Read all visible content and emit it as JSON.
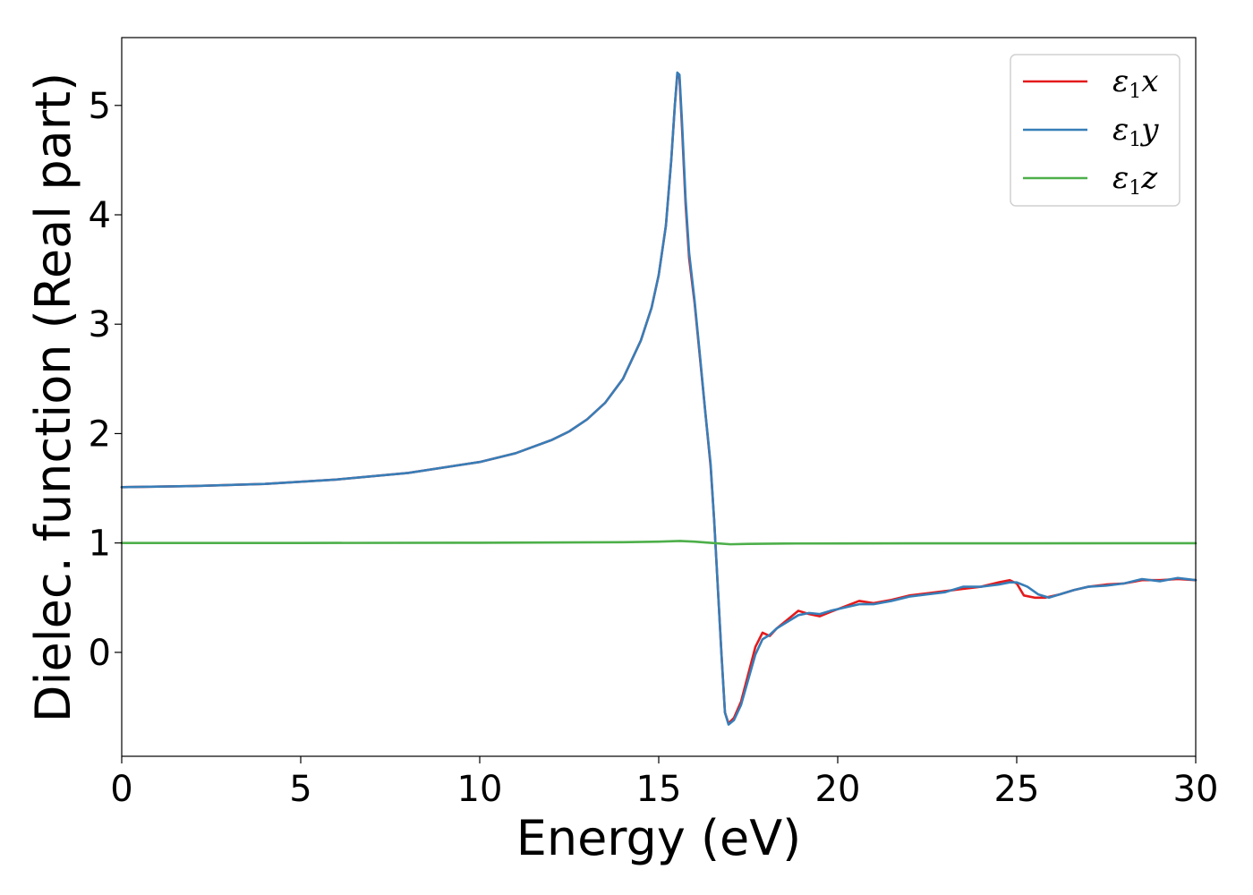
{
  "chart_data": {
    "type": "line",
    "xlabel": "Energy (eV)",
    "ylabel": "Dielec. function (Real part)",
    "xlim": [
      0,
      30
    ],
    "ylim": [
      -0.95,
      5.62
    ],
    "xticks": [
      0,
      5,
      10,
      15,
      20,
      25,
      30
    ],
    "xtick_labels": [
      "0",
      "5",
      "10",
      "15",
      "20",
      "25",
      "30"
    ],
    "yticks": [
      0,
      1,
      2,
      3,
      4,
      5
    ],
    "ytick_labels": [
      "0",
      "1",
      "2",
      "3",
      "4",
      "5"
    ],
    "grid": false,
    "legend_position": "top-right",
    "series": [
      {
        "name": "ε1x",
        "label_main": "ε",
        "label_sub": "1",
        "label_tail": "x",
        "color": "#e41a1c",
        "points": [
          [
            0,
            1.51
          ],
          [
            2,
            1.52
          ],
          [
            4,
            1.54
          ],
          [
            6,
            1.58
          ],
          [
            8,
            1.64
          ],
          [
            10,
            1.74
          ],
          [
            11,
            1.82
          ],
          [
            12,
            1.94
          ],
          [
            12.5,
            2.02
          ],
          [
            13,
            2.13
          ],
          [
            13.5,
            2.28
          ],
          [
            14,
            2.5
          ],
          [
            14.5,
            2.85
          ],
          [
            14.8,
            3.15
          ],
          [
            15,
            3.45
          ],
          [
            15.2,
            3.9
          ],
          [
            15.35,
            4.5
          ],
          [
            15.45,
            5.0
          ],
          [
            15.52,
            5.28
          ],
          [
            15.58,
            5.25
          ],
          [
            15.65,
            4.8
          ],
          [
            15.75,
            4.1
          ],
          [
            15.85,
            3.6
          ],
          [
            16.0,
            3.2
          ],
          [
            16.15,
            2.7
          ],
          [
            16.3,
            2.2
          ],
          [
            16.45,
            1.7
          ],
          [
            16.55,
            1.2
          ],
          [
            16.65,
            0.6
          ],
          [
            16.75,
            0.0
          ],
          [
            16.85,
            -0.55
          ],
          [
            16.95,
            -0.65
          ],
          [
            17.1,
            -0.6
          ],
          [
            17.3,
            -0.45
          ],
          [
            17.5,
            -0.2
          ],
          [
            17.7,
            0.05
          ],
          [
            17.9,
            0.18
          ],
          [
            18.1,
            0.15
          ],
          [
            18.3,
            0.22
          ],
          [
            18.6,
            0.3
          ],
          [
            18.9,
            0.38
          ],
          [
            19.2,
            0.35
          ],
          [
            19.5,
            0.33
          ],
          [
            19.8,
            0.37
          ],
          [
            20.2,
            0.42
          ],
          [
            20.6,
            0.47
          ],
          [
            21.0,
            0.45
          ],
          [
            21.5,
            0.48
          ],
          [
            22.0,
            0.52
          ],
          [
            22.5,
            0.54
          ],
          [
            23.0,
            0.56
          ],
          [
            23.5,
            0.58
          ],
          [
            24.0,
            0.6
          ],
          [
            24.5,
            0.64
          ],
          [
            24.8,
            0.66
          ],
          [
            25.0,
            0.63
          ],
          [
            25.2,
            0.52
          ],
          [
            25.5,
            0.5
          ],
          [
            25.8,
            0.5
          ],
          [
            26.2,
            0.53
          ],
          [
            26.6,
            0.57
          ],
          [
            27.0,
            0.6
          ],
          [
            27.5,
            0.62
          ],
          [
            28.0,
            0.63
          ],
          [
            28.5,
            0.66
          ],
          [
            29.0,
            0.66
          ],
          [
            29.5,
            0.67
          ],
          [
            30.0,
            0.66
          ]
        ]
      },
      {
        "name": "ε1y",
        "label_main": "ε",
        "label_sub": "1",
        "label_tail": "y",
        "color": "#377eb8",
        "points": [
          [
            0,
            1.51
          ],
          [
            2,
            1.52
          ],
          [
            4,
            1.54
          ],
          [
            6,
            1.58
          ],
          [
            8,
            1.64
          ],
          [
            10,
            1.74
          ],
          [
            11,
            1.82
          ],
          [
            12,
            1.94
          ],
          [
            12.5,
            2.02
          ],
          [
            13,
            2.13
          ],
          [
            13.5,
            2.28
          ],
          [
            14,
            2.5
          ],
          [
            14.5,
            2.85
          ],
          [
            14.8,
            3.15
          ],
          [
            15,
            3.45
          ],
          [
            15.2,
            3.9
          ],
          [
            15.35,
            4.5
          ],
          [
            15.45,
            5.0
          ],
          [
            15.52,
            5.3
          ],
          [
            15.58,
            5.28
          ],
          [
            15.65,
            4.85
          ],
          [
            15.75,
            4.15
          ],
          [
            15.85,
            3.65
          ],
          [
            16.0,
            3.22
          ],
          [
            16.15,
            2.72
          ],
          [
            16.3,
            2.2
          ],
          [
            16.45,
            1.72
          ],
          [
            16.55,
            1.2
          ],
          [
            16.65,
            0.6
          ],
          [
            16.75,
            0.0
          ],
          [
            16.85,
            -0.55
          ],
          [
            16.95,
            -0.66
          ],
          [
            17.1,
            -0.62
          ],
          [
            17.3,
            -0.48
          ],
          [
            17.5,
            -0.25
          ],
          [
            17.7,
            -0.02
          ],
          [
            17.9,
            0.12
          ],
          [
            18.1,
            0.16
          ],
          [
            18.3,
            0.22
          ],
          [
            18.6,
            0.28
          ],
          [
            18.9,
            0.34
          ],
          [
            19.2,
            0.36
          ],
          [
            19.5,
            0.35
          ],
          [
            19.8,
            0.38
          ],
          [
            20.2,
            0.41
          ],
          [
            20.6,
            0.44
          ],
          [
            21.0,
            0.44
          ],
          [
            21.5,
            0.47
          ],
          [
            22.0,
            0.51
          ],
          [
            22.5,
            0.53
          ],
          [
            23.0,
            0.55
          ],
          [
            23.5,
            0.6
          ],
          [
            24.0,
            0.6
          ],
          [
            24.5,
            0.62
          ],
          [
            24.8,
            0.64
          ],
          [
            25.0,
            0.64
          ],
          [
            25.3,
            0.6
          ],
          [
            25.6,
            0.53
          ],
          [
            25.9,
            0.5
          ],
          [
            26.2,
            0.53
          ],
          [
            26.6,
            0.57
          ],
          [
            27.0,
            0.6
          ],
          [
            27.5,
            0.61
          ],
          [
            28.0,
            0.63
          ],
          [
            28.5,
            0.67
          ],
          [
            29.0,
            0.65
          ],
          [
            29.5,
            0.68
          ],
          [
            30.0,
            0.66
          ]
        ]
      },
      {
        "name": "ε1z",
        "label_main": "ε",
        "label_sub": "1",
        "label_tail": "z",
        "color": "#4daf4a",
        "points": [
          [
            0,
            1.0
          ],
          [
            5,
            1.0
          ],
          [
            10,
            1.002
          ],
          [
            14,
            1.007
          ],
          [
            15,
            1.012
          ],
          [
            15.6,
            1.018
          ],
          [
            16.0,
            1.012
          ],
          [
            16.5,
            1.0
          ],
          [
            17.0,
            0.988
          ],
          [
            17.5,
            0.992
          ],
          [
            18.5,
            0.995
          ],
          [
            20,
            0.996
          ],
          [
            25,
            0.997
          ],
          [
            30,
            0.998
          ]
        ]
      }
    ]
  }
}
